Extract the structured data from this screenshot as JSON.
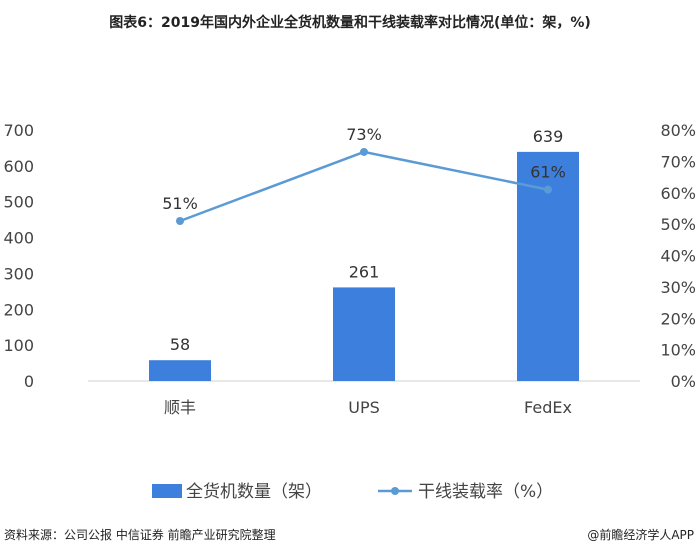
{
  "title": "图表6：2019年国内外企业全货机数量和干线装载率对比情况(单位：架，%)",
  "source": "资料来源：公司公报 中信证券 前瞻产业研究院整理",
  "brand": "@前瞻经济学人APP",
  "chart_data": {
    "type": "bar",
    "categories": [
      "顺丰",
      "UPS",
      "FedEx"
    ],
    "series": [
      {
        "name": "全货机数量（架）",
        "kind": "bar",
        "axis": "left",
        "color": "#3d7fdc",
        "values": [
          58,
          261,
          639
        ],
        "labels": [
          "58",
          "261",
          "639"
        ]
      },
      {
        "name": "干线装载率（%）",
        "kind": "line",
        "axis": "right",
        "color": "#5b9bd5",
        "values": [
          51,
          73,
          61
        ],
        "labels": [
          "51%",
          "73%",
          "61%"
        ]
      }
    ],
    "y_left": {
      "min": 0,
      "max": 700,
      "ticks": [
        "0",
        "100",
        "200",
        "300",
        "400",
        "500",
        "600",
        "700"
      ]
    },
    "y_right": {
      "min": 0,
      "max": 80,
      "ticks": [
        "0%",
        "10%",
        "20%",
        "30%",
        "40%",
        "50%",
        "60%",
        "70%",
        "80%"
      ]
    },
    "grid": false,
    "legend": "bottom"
  }
}
